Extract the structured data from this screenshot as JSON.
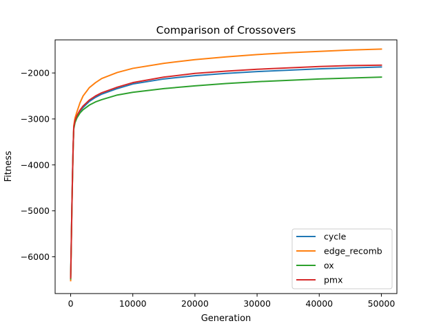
{
  "chart_data": {
    "type": "line",
    "title": "Comparison of Crossovers",
    "xlabel": "Generation",
    "ylabel": "Fitness",
    "xlim": [
      -2500,
      52500
    ],
    "ylim": [
      -6800,
      -1280
    ],
    "xticks": [
      0,
      10000,
      20000,
      30000,
      40000,
      50000
    ],
    "yticks": [
      -6000,
      -5000,
      -4000,
      -3000,
      -2000
    ],
    "xtick_labels": [
      "0",
      "10000",
      "20000",
      "30000",
      "40000",
      "50000"
    ],
    "ytick_labels": [
      "−6000",
      "−5000",
      "−4000",
      "−3000",
      "−2000"
    ],
    "grid": false,
    "legend_position": "lower-right",
    "x": [
      0,
      100,
      200,
      300,
      400,
      500,
      700,
      1000,
      1500,
      2000,
      3000,
      4000,
      5000,
      7500,
      10000,
      15000,
      20000,
      25000,
      30000,
      35000,
      40000,
      45000,
      50000
    ],
    "series": [
      {
        "name": "cycle",
        "color": "#1f77b4",
        "values": [
          -6450,
          -5700,
          -4900,
          -4200,
          -3600,
          -3200,
          -3050,
          -2950,
          -2830,
          -2750,
          -2620,
          -2530,
          -2460,
          -2340,
          -2240,
          -2130,
          -2060,
          -2010,
          -1970,
          -1940,
          -1910,
          -1890,
          -1870
        ]
      },
      {
        "name": "edge_recomb",
        "color": "#ff7f0e",
        "values": [
          -6520,
          -5750,
          -4950,
          -4250,
          -3650,
          -3150,
          -2980,
          -2850,
          -2650,
          -2500,
          -2320,
          -2210,
          -2120,
          -1990,
          -1900,
          -1790,
          -1710,
          -1650,
          -1600,
          -1560,
          -1530,
          -1500,
          -1480
        ]
      },
      {
        "name": "ox",
        "color": "#2ca02c",
        "values": [
          -6480,
          -5720,
          -4920,
          -4230,
          -3630,
          -3220,
          -3080,
          -2980,
          -2870,
          -2800,
          -2700,
          -2630,
          -2580,
          -2480,
          -2420,
          -2340,
          -2280,
          -2230,
          -2190,
          -2160,
          -2130,
          -2110,
          -2090
        ]
      },
      {
        "name": "pmx",
        "color": "#d62728",
        "values": [
          -6460,
          -5700,
          -4900,
          -4200,
          -3600,
          -3180,
          -3030,
          -2930,
          -2810,
          -2720,
          -2590,
          -2500,
          -2430,
          -2310,
          -2210,
          -2090,
          -2010,
          -1960,
          -1920,
          -1890,
          -1860,
          -1840,
          -1830
        ]
      }
    ]
  }
}
